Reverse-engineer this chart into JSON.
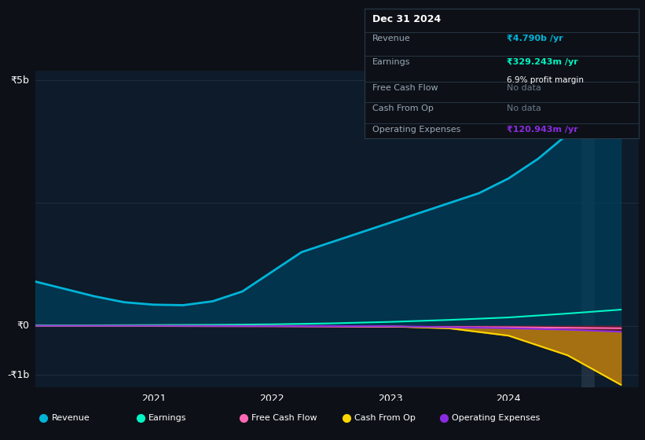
{
  "bg_color": "#0d1117",
  "plot_bg_color": "#0d1b2a",
  "grid_color": "#1e2d3d",
  "tooltip_border": "#2a3a4a",
  "ylabel_5b": "₹5b",
  "ylabel_0": "₹0",
  "ylabel_neg1b": "-₹1b",
  "x_ticks": [
    2021,
    2022,
    2023,
    2024
  ],
  "revenue_color": "#00b4d8",
  "earnings_color": "#00f5c4",
  "free_cash_flow_color": "#ff69b4",
  "cash_from_op_color": "#ffd700",
  "op_expenses_color": "#8a2be2",
  "revenue_fill_color": "#003f5c",
  "op_fill_color": "#6b1a2e",
  "cashop_fill_color": "#4a2000",
  "wedge_fill_color": "#b8860b",
  "tooltip_bg": "#0d1117",
  "tooltip_title": "Dec 31 2024",
  "tooltip_revenue_label": "Revenue",
  "tooltip_revenue_value": "₹4.790b /yr",
  "tooltip_earnings_label": "Earnings",
  "tooltip_earnings_value": "₹329.243m /yr",
  "tooltip_margin": "6.9% profit margin",
  "tooltip_fcf_label": "Free Cash Flow",
  "tooltip_fcf_value": "No data",
  "tooltip_cashop_label": "Cash From Op",
  "tooltip_cashop_value": "No data",
  "tooltip_opex_label": "Operating Expenses",
  "tooltip_opex_value": "₹120.943m /yr",
  "legend_items": [
    "Revenue",
    "Earnings",
    "Free Cash Flow",
    "Cash From Op",
    "Operating Expenses"
  ],
  "legend_colors": [
    "#00b4d8",
    "#00f5c4",
    "#ff69b4",
    "#ffd700",
    "#8a2be2"
  ],
  "highlight_x": 2024.67,
  "revenue_x": [
    2020.0,
    2020.25,
    2020.5,
    2020.75,
    2021.0,
    2021.25,
    2021.5,
    2021.75,
    2022.0,
    2022.25,
    2022.5,
    2022.75,
    2023.0,
    2023.25,
    2023.5,
    2023.75,
    2024.0,
    2024.25,
    2024.5,
    2024.75,
    2024.95
  ],
  "revenue_y": [
    900,
    750,
    600,
    480,
    430,
    420,
    500,
    700,
    1100,
    1500,
    1700,
    1900,
    2100,
    2300,
    2500,
    2700,
    3000,
    3400,
    3900,
    4600,
    4790
  ],
  "earnings_x": [
    2020.0,
    2020.5,
    2021.0,
    2021.5,
    2022.0,
    2022.5,
    2023.0,
    2023.5,
    2024.0,
    2024.5,
    2024.95
  ],
  "earnings_y": [
    10,
    10,
    15,
    20,
    30,
    50,
    80,
    120,
    170,
    250,
    329
  ],
  "fcf_x": [
    2020.0,
    2021.0,
    2021.5,
    2022.0,
    2022.5,
    2023.0,
    2023.5,
    2024.0,
    2024.5,
    2024.95
  ],
  "fcf_y": [
    -5,
    -5,
    -8,
    -10,
    -15,
    -20,
    -25,
    -30,
    -40,
    -50
  ],
  "cashop_x": [
    2020.0,
    2021.0,
    2021.5,
    2022.0,
    2022.5,
    2023.0,
    2023.5,
    2024.0,
    2024.5,
    2024.95
  ],
  "cashop_y": [
    -2,
    -2,
    -3,
    -3,
    -5,
    -10,
    -50,
    -200,
    -600,
    -1200
  ],
  "opex_x": [
    2020.0,
    2021.0,
    2021.5,
    2022.0,
    2022.5,
    2023.0,
    2023.5,
    2024.0,
    2024.5,
    2024.95
  ],
  "opex_y": [
    0,
    0,
    -2,
    -3,
    -5,
    -8,
    -30,
    -50,
    -80,
    -121
  ],
  "ylim": [
    -1250,
    5200
  ],
  "xlim": [
    2020.0,
    2025.1
  ]
}
